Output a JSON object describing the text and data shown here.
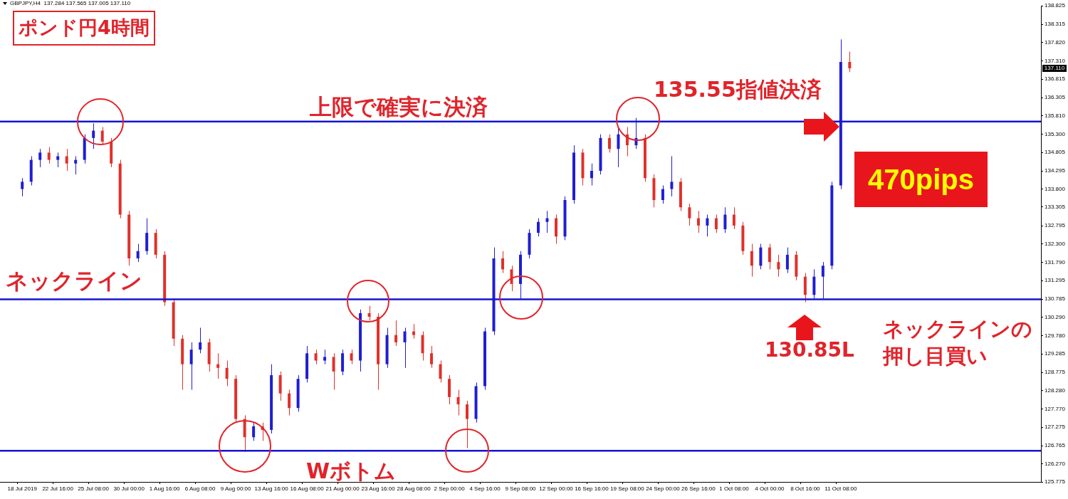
{
  "chart_data": {
    "type": "candlestick",
    "title": "ポンド円4時間",
    "subtitle": "GBPJPY,H4  137.284 137.565 137.005 137.110",
    "categories": [
      null,
      null,
      "18 Jul 2019",
      null,
      null,
      null,
      "22 Jul 16:00",
      null,
      null,
      null,
      "25 Jul 08:00",
      null,
      null,
      null,
      "30 Jul 00:00",
      null,
      null,
      null,
      "1 Aug 16:00",
      null,
      null,
      null,
      "6 Aug 08:00",
      null,
      null,
      null,
      "9 Aug 00:00",
      null,
      null,
      null,
      "13 Aug 16:00",
      null,
      null,
      null,
      "16 Aug 08:00",
      null,
      null,
      null,
      "21 Aug 00:00",
      null,
      null,
      null,
      "23 Aug 16:00",
      null,
      null,
      null,
      "28 Aug 08:00",
      null,
      null,
      null,
      "2 Sep 00:00",
      null,
      null,
      null,
      "4 Sep 16:00",
      null,
      null,
      null,
      "9 Sep 08:00",
      null,
      null,
      null,
      "12 Sep 00:00",
      null,
      null,
      null,
      "16 Sep 16:00",
      null,
      null,
      null,
      "19 Sep 08:00",
      null,
      null,
      null,
      "24 Sep 00:00",
      null,
      null,
      null,
      "26 Sep 16:00",
      null,
      null,
      null,
      "1 Oct 08:00",
      null,
      null,
      null,
      "4 Oct 00:00",
      null,
      null,
      null,
      "8 Oct 16:00",
      null,
      null,
      null,
      "11 Oct 08:00",
      null,
      null,
      null,
      null,
      null,
      null,
      null,
      null,
      null,
      null,
      null,
      null,
      null,
      null,
      null,
      null,
      null,
      null,
      null,
      null,
      null,
      null
    ],
    "ohlc": [
      null,
      null,
      [
        133.8,
        134.1,
        133.6,
        134.0
      ],
      [
        134.0,
        134.7,
        133.9,
        134.6
      ],
      [
        134.6,
        134.9,
        134.4,
        134.8
      ],
      [
        134.8,
        134.95,
        134.5,
        134.6
      ],
      [
        134.6,
        134.8,
        134.4,
        134.7
      ],
      [
        134.7,
        134.9,
        134.3,
        134.5
      ],
      [
        134.5,
        134.7,
        134.2,
        134.6
      ],
      [
        134.6,
        135.3,
        134.5,
        135.2
      ],
      [
        135.2,
        135.6,
        134.9,
        135.4
      ],
      [
        135.4,
        135.5,
        135.0,
        135.1
      ],
      [
        135.1,
        135.2,
        134.4,
        134.5
      ],
      [
        134.5,
        134.6,
        133.0,
        133.1
      ],
      [
        133.1,
        133.2,
        131.7,
        131.9
      ],
      [
        131.9,
        132.3,
        131.8,
        132.1
      ],
      [
        132.1,
        133.0,
        132.0,
        132.6
      ],
      [
        132.6,
        132.7,
        131.9,
        132.0
      ],
      [
        132.0,
        132.1,
        130.6,
        130.7
      ],
      [
        130.7,
        130.8,
        129.5,
        129.7
      ],
      [
        129.7,
        129.8,
        128.3,
        129.0
      ],
      [
        129.0,
        129.6,
        128.3,
        129.4
      ],
      [
        129.4,
        130.0,
        129.3,
        129.6
      ],
      [
        129.6,
        129.7,
        128.8,
        129.0
      ],
      [
        129.0,
        129.3,
        128.6,
        128.9
      ],
      [
        128.9,
        129.1,
        128.4,
        128.6
      ],
      [
        128.6,
        128.7,
        127.4,
        127.5
      ],
      [
        127.5,
        127.6,
        126.6,
        127.0
      ],
      [
        127.0,
        127.4,
        126.9,
        127.3
      ],
      [
        127.3,
        127.4,
        126.9,
        127.2
      ],
      [
        127.2,
        129.0,
        127.1,
        128.7
      ],
      [
        128.7,
        128.8,
        128.0,
        128.2
      ],
      [
        128.2,
        128.3,
        127.6,
        127.8
      ],
      [
        127.8,
        128.7,
        127.7,
        128.6
      ],
      [
        128.6,
        129.5,
        128.5,
        129.3
      ],
      [
        129.3,
        129.4,
        129.0,
        129.1
      ],
      [
        129.1,
        129.4,
        129.0,
        129.2
      ],
      [
        129.2,
        129.3,
        128.3,
        128.8
      ],
      [
        128.8,
        129.4,
        128.7,
        129.3
      ],
      [
        129.3,
        129.4,
        129.0,
        129.1
      ],
      [
        129.1,
        130.5,
        128.8,
        130.4
      ],
      [
        130.4,
        130.6,
        130.2,
        130.3
      ],
      [
        130.3,
        130.4,
        128.3,
        129.0
      ],
      [
        129.0,
        130.0,
        128.9,
        129.8
      ],
      [
        129.8,
        130.2,
        129.5,
        129.6
      ],
      [
        129.6,
        130.0,
        128.9,
        129.9
      ],
      [
        129.9,
        130.1,
        129.7,
        129.8
      ],
      [
        129.8,
        129.9,
        129.1,
        129.3
      ],
      [
        129.3,
        129.5,
        128.9,
        129.0
      ],
      [
        129.0,
        129.1,
        128.5,
        128.6
      ],
      [
        128.6,
        128.7,
        127.9,
        128.1
      ],
      [
        128.1,
        128.3,
        127.6,
        127.9
      ],
      [
        127.9,
        128.0,
        126.7,
        127.5
      ],
      [
        127.5,
        128.5,
        127.4,
        128.4
      ],
      [
        128.4,
        130.0,
        128.3,
        129.9
      ],
      [
        129.9,
        132.2,
        129.8,
        131.9
      ],
      [
        131.9,
        132.1,
        131.5,
        131.6
      ],
      [
        131.6,
        131.7,
        131.0,
        131.2
      ],
      [
        131.2,
        132.1,
        130.8,
        132.0
      ],
      [
        132.0,
        132.7,
        131.9,
        132.6
      ],
      [
        132.6,
        133.0,
        132.5,
        132.9
      ],
      [
        132.9,
        133.2,
        132.6,
        133.0
      ],
      [
        133.0,
        133.1,
        132.3,
        132.5
      ],
      [
        132.5,
        133.6,
        132.4,
        133.5
      ],
      [
        133.5,
        135.0,
        133.4,
        134.8
      ],
      [
        134.8,
        134.9,
        133.9,
        134.1
      ],
      [
        134.1,
        134.5,
        133.9,
        134.3
      ],
      [
        134.3,
        135.3,
        134.2,
        135.2
      ],
      [
        135.2,
        135.3,
        134.8,
        134.9
      ],
      [
        134.9,
        135.5,
        134.4,
        135.3
      ],
      [
        135.3,
        135.5,
        134.7,
        135.0
      ],
      [
        135.0,
        135.75,
        134.9,
        135.2
      ],
      [
        135.2,
        135.3,
        134.0,
        134.1
      ],
      [
        134.1,
        134.2,
        133.3,
        133.5
      ],
      [
        133.5,
        133.9,
        133.4,
        133.8
      ],
      [
        133.8,
        134.7,
        133.6,
        134.0
      ],
      [
        134.0,
        134.1,
        133.2,
        133.3
      ],
      [
        133.3,
        133.4,
        132.8,
        133.0
      ],
      [
        133.0,
        133.2,
        132.6,
        132.8
      ],
      [
        132.8,
        133.1,
        132.5,
        133.0
      ],
      [
        133.0,
        133.1,
        132.6,
        132.7
      ],
      [
        132.7,
        133.3,
        132.6,
        133.1
      ],
      [
        133.1,
        133.3,
        132.7,
        132.8
      ],
      [
        132.8,
        132.9,
        132.0,
        132.1
      ],
      [
        132.1,
        132.3,
        131.4,
        131.7
      ],
      [
        131.7,
        132.3,
        131.6,
        132.2
      ],
      [
        132.2,
        132.3,
        131.6,
        131.8
      ],
      [
        131.8,
        132.0,
        131.4,
        131.6
      ],
      [
        131.6,
        132.2,
        131.5,
        132.0
      ],
      [
        132.0,
        132.1,
        131.3,
        131.4
      ],
      [
        131.4,
        131.5,
        130.7,
        130.9
      ],
      [
        130.9,
        131.6,
        130.8,
        131.4
      ],
      [
        131.4,
        131.8,
        130.8,
        131.7
      ],
      [
        131.7,
        134.0,
        131.6,
        133.9
      ],
      [
        133.9,
        137.9,
        133.8,
        137.284
      ],
      [
        137.284,
        137.565,
        137.005,
        137.11
      ],
      null,
      null,
      null,
      null,
      null,
      null,
      null,
      null,
      null,
      null,
      null,
      null,
      null,
      null,
      null,
      null,
      null,
      null,
      null,
      null,
      null
    ],
    "colors": [
      null,
      null,
      "#1e1ed2",
      "#1e1ed2",
      "#1e1ed2",
      "#e0302a",
      "#1e1ed2",
      "#e0302a",
      "#1e1ed2",
      "#1e1ed2",
      "#1e1ed2",
      "#e0302a",
      "#e0302a",
      "#e0302a",
      "#e0302a",
      "#1e1ed2",
      "#1e1ed2",
      "#e0302a",
      "#e0302a",
      "#e0302a",
      "#e0302a",
      "#1e1ed2",
      "#1e1ed2",
      "#e0302a",
      "#e0302a",
      "#e0302a",
      "#e0302a",
      "#e0302a",
      "#1e1ed2",
      "#e0302a",
      "#1e1ed2",
      "#e0302a",
      "#e0302a",
      "#1e1ed2",
      "#1e1ed2",
      "#e0302a",
      "#1e1ed2",
      "#e0302a",
      "#1e1ed2",
      "#e0302a",
      "#1e1ed2",
      "#e0302a",
      "#e0302a",
      "#1e1ed2",
      "#e0302a",
      "#1e1ed2",
      "#e0302a",
      "#e0302a",
      "#e0302a",
      "#e0302a",
      "#e0302a",
      "#e0302a",
      "#e0302a",
      "#1e1ed2",
      "#1e1ed2",
      "#1e1ed2",
      "#e0302a",
      "#e0302a",
      "#1e1ed2",
      "#1e1ed2",
      "#1e1ed2",
      "#1e1ed2",
      "#e0302a",
      "#1e1ed2",
      "#1e1ed2",
      "#e0302a",
      "#1e1ed2",
      "#1e1ed2",
      "#e0302a",
      "#1e1ed2",
      "#e0302a",
      "#1e1ed2",
      "#e0302a",
      "#e0302a",
      "#1e1ed2",
      "#1e1ed2",
      "#e0302a",
      "#e0302a",
      "#e0302a",
      "#1e1ed2",
      "#e0302a",
      "#1e1ed2",
      "#e0302a",
      "#e0302a",
      "#e0302a",
      "#1e1ed2",
      "#e0302a",
      "#e0302a",
      "#1e1ed2",
      "#e0302a",
      "#e0302a",
      "#1e1ed2",
      "#1e1ed2",
      "#1e1ed2",
      "#1e1ed2",
      "#e0302a",
      null,
      null,
      null,
      null,
      null,
      null,
      null,
      null,
      null,
      null,
      null,
      null,
      null,
      null,
      null,
      null,
      null,
      null,
      null,
      null,
      null
    ],
    "ylim": [
      125.775,
      138.825
    ],
    "yticks": [
      138.825,
      138.315,
      {
        "value": 137.82,
        "label": "137.820"
      },
      {
        "value": 137.31,
        "label": "137.310"
      },
      136.815,
      136.305,
      {
        "value": 135.81,
        "label": "135.810"
      },
      {
        "value": 135.3,
        "label": "135.300"
      },
      134.805,
      134.295,
      {
        "value": 133.8,
        "label": "133.800"
      },
      133.305,
      132.795,
      {
        "value": 132.3,
        "label": "132.300"
      },
      {
        "value": 131.79,
        "label": "131.790"
      },
      131.295,
      130.785,
      {
        "value": 130.29,
        "label": "130.290"
      },
      {
        "value": 129.78,
        "label": "129.780"
      },
      129.285,
      128.775,
      {
        "value": 128.28,
        "label": "128.280"
      },
      {
        "value": 127.77,
        "label": "127.770"
      },
      127.275,
      126.765,
      {
        "value": 126.27,
        "label": "126.270"
      },
      125.775
    ],
    "ref_lines": [
      {
        "axis": "y",
        "value": 135.65,
        "color": "#1414d2"
      },
      {
        "axis": "y",
        "value": 130.78,
        "color": "#1414d2"
      },
      {
        "axis": "y",
        "value": 126.63,
        "color": "#1414d2"
      }
    ],
    "annotations": [
      "上限で確実に決済",
      "135.55指値決済",
      "ネックライン",
      "ネックラインの押し目買い",
      "130.85L",
      "Wボトム",
      "470pips",
      "137.110"
    ],
    "grid": false
  }
}
